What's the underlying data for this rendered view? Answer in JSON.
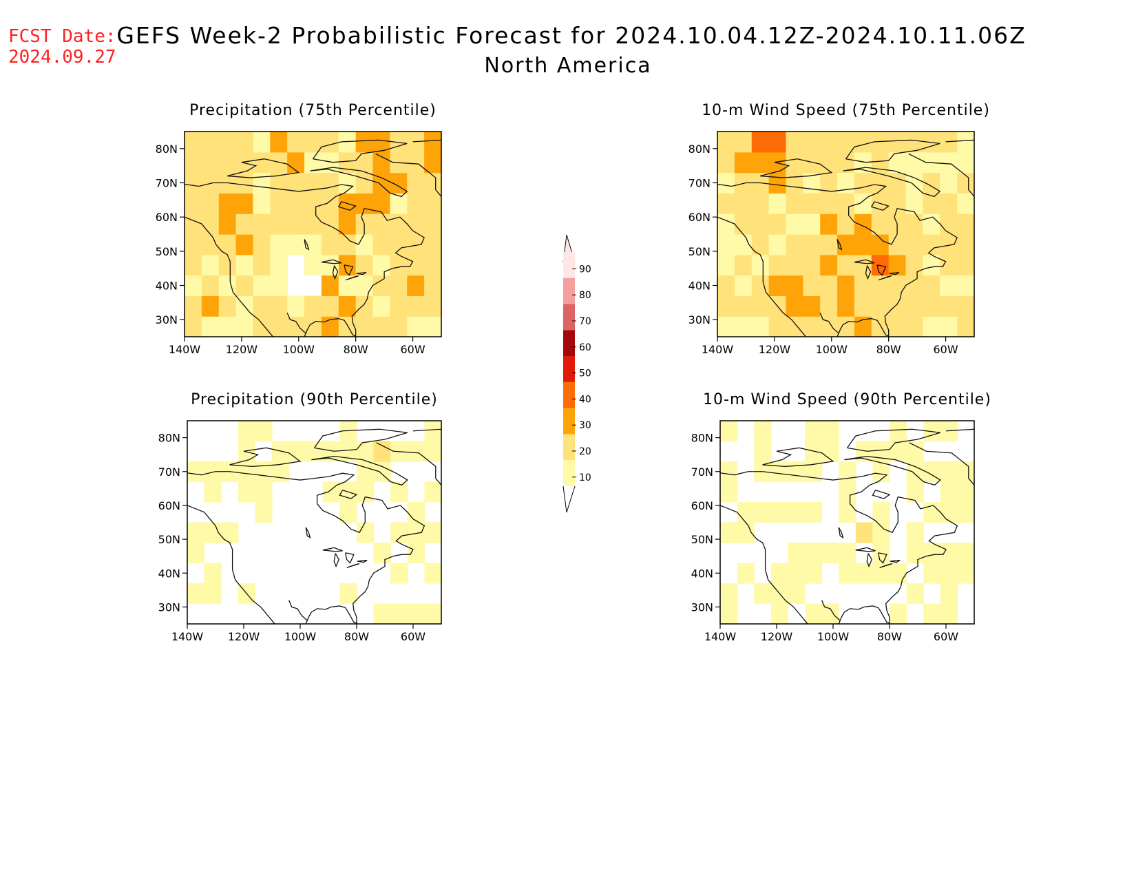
{
  "fcst": {
    "label": "FCST Date:",
    "date": "2024.09.27"
  },
  "title": {
    "line1": "GEFS Week-2 Probabilistic Forecast for 2024.10.04.12Z-2024.10.11.06Z",
    "line2": "North America"
  },
  "colors": {
    "c10": "#fffaa8",
    "c20": "#ffe27a",
    "c30": "#ffa408",
    "c40": "#ff6b05",
    "c50": "#e01b08",
    "c60": "#a40808",
    "c70": "#de6464",
    "c80": "#f4a0a0",
    "c90": "#ffe6e6",
    "outline": "#111111"
  },
  "colorbar": {
    "levels": [
      "10",
      "20",
      "30",
      "40",
      "50",
      "60",
      "70",
      "80",
      "90"
    ]
  },
  "chart_data": [
    {
      "type": "heatmap",
      "title": "Precipitation (75th Percentile)",
      "xticks": [
        "140W",
        "120W",
        "100W",
        "80W",
        "60W"
      ],
      "yticks": [
        "30N",
        "40N",
        "50N",
        "60N",
        "70N",
        "80N"
      ],
      "xlim": [
        -140,
        -50
      ],
      "ylim": [
        25,
        85
      ],
      "dominant_level": "20-30"
    },
    {
      "type": "heatmap",
      "title": "10-m Wind Speed (75th Percentile)",
      "xticks": [
        "140W",
        "120W",
        "100W",
        "80W",
        "60W"
      ],
      "yticks": [
        "30N",
        "40N",
        "50N",
        "60N",
        "70N",
        "80N"
      ],
      "xlim": [
        -140,
        -50
      ],
      "ylim": [
        25,
        85
      ],
      "dominant_level": "10-30"
    },
    {
      "type": "heatmap",
      "title": "Precipitation (90th Percentile)",
      "xticks": [
        "140W",
        "120W",
        "100W",
        "80W",
        "60W"
      ],
      "yticks": [
        "30N",
        "40N",
        "50N",
        "60N",
        "70N",
        "80N"
      ],
      "xlim": [
        -140,
        -50
      ],
      "ylim": [
        25,
        85
      ],
      "dominant_level": "0-20"
    },
    {
      "type": "heatmap",
      "title": "10-m Wind Speed (90th Percentile)",
      "xticks": [
        "140W",
        "120W",
        "100W",
        "80W",
        "60W"
      ],
      "yticks": [
        "30N",
        "40N",
        "50N",
        "60N",
        "70N",
        "80N"
      ],
      "xlim": [
        -140,
        -50
      ],
      "ylim": [
        25,
        85
      ],
      "dominant_level": "0-20"
    }
  ]
}
